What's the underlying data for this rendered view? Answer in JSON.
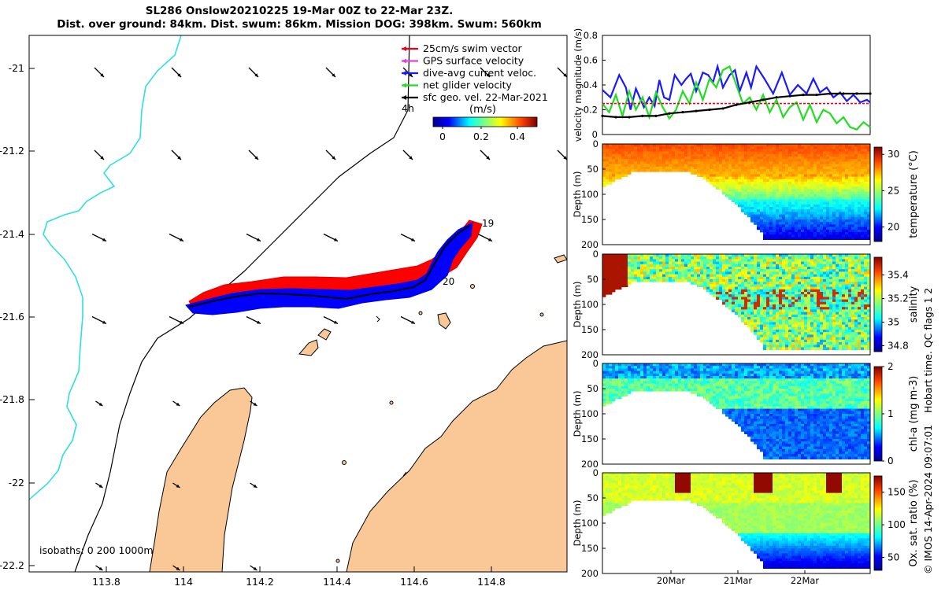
{
  "header": {
    "title_line1": "SL286 Onslow20210225 19-Mar 00Z to 22-Mar 23Z.",
    "title_line2": "Dist. over ground: 84km. Dist. swum: 86km. Mission DOG: 398km. Swum: 560km"
  },
  "map": {
    "x_ticks": [
      "113.8",
      "114",
      "114.2",
      "114.4",
      "114.6",
      "114.8"
    ],
    "y_ticks": [
      "-21",
      "-21.2",
      "-21.4",
      "-21.6",
      "-21.8",
      "-22",
      "-22.2"
    ],
    "isobath_label": "isobaths: 0   200  1000m",
    "track_day_labels": [
      "19",
      "20"
    ],
    "scale_label": "4h",
    "legend": [
      {
        "label": "25cm/s swim vector",
        "color": "#e8001c"
      },
      {
        "label": "GPS surface velocity",
        "color": "#e040e0"
      },
      {
        "label": "dive-avg current veloc.",
        "color": "#1a1aff"
      },
      {
        "label": "net glider velocity",
        "color": "#22dd22"
      },
      {
        "label": "sfc geo. vel. 22-Mar-2021",
        "color": "#000000"
      }
    ],
    "colorbar": {
      "title": "(m/s)",
      "ticks": [
        "0",
        "0.2",
        "0.4"
      ]
    }
  },
  "chart_data": [
    {
      "type": "line",
      "title": "",
      "ylabel": "velocity magnitude (m/s)",
      "ylim": [
        0,
        0.8
      ],
      "y_ticks": [
        "0",
        "0.2",
        "0.4",
        "0.6",
        "0.8"
      ],
      "x_range_days": [
        0,
        4
      ],
      "series": [
        {
          "name": "dive-avg current veloc.",
          "color": "#1a1aff",
          "x": [
            0,
            0.12,
            0.25,
            0.35,
            0.42,
            0.5,
            0.62,
            0.7,
            0.78,
            0.85,
            0.92,
            1.0,
            1.08,
            1.18,
            1.25,
            1.32,
            1.4,
            1.5,
            1.58,
            1.65,
            1.72,
            1.8,
            1.9,
            1.98,
            2.05,
            2.15,
            2.22,
            2.3,
            2.42,
            2.55,
            2.68,
            2.8,
            2.92,
            3.05,
            3.15,
            3.25,
            3.35,
            3.45,
            3.55,
            3.65,
            3.75,
            3.85,
            3.95,
            4.0
          ],
          "y": [
            0.36,
            0.3,
            0.48,
            0.38,
            0.2,
            0.37,
            0.22,
            0.3,
            0.23,
            0.44,
            0.3,
            0.28,
            0.48,
            0.4,
            0.45,
            0.49,
            0.35,
            0.5,
            0.48,
            0.42,
            0.55,
            0.38,
            0.48,
            0.52,
            0.35,
            0.5,
            0.38,
            0.55,
            0.45,
            0.33,
            0.5,
            0.32,
            0.4,
            0.33,
            0.45,
            0.34,
            0.38,
            0.3,
            0.34,
            0.27,
            0.32,
            0.26,
            0.28,
            0.26
          ]
        },
        {
          "name": "net glider velocity",
          "color": "#22dd22",
          "x": [
            0,
            0.1,
            0.2,
            0.3,
            0.4,
            0.5,
            0.6,
            0.7,
            0.8,
            0.9,
            1.0,
            1.1,
            1.2,
            1.3,
            1.4,
            1.5,
            1.6,
            1.7,
            1.8,
            1.9,
            2.0,
            2.1,
            2.2,
            2.3,
            2.4,
            2.5,
            2.6,
            2.7,
            2.8,
            2.9,
            3.0,
            3.1,
            3.2,
            3.3,
            3.4,
            3.5,
            3.6,
            3.7,
            3.8,
            3.9,
            4.0
          ],
          "y": [
            0.25,
            0.18,
            0.32,
            0.15,
            0.35,
            0.2,
            0.3,
            0.14,
            0.34,
            0.22,
            0.13,
            0.2,
            0.35,
            0.25,
            0.42,
            0.28,
            0.45,
            0.38,
            0.52,
            0.55,
            0.4,
            0.25,
            0.3,
            0.2,
            0.32,
            0.18,
            0.28,
            0.14,
            0.22,
            0.26,
            0.12,
            0.24,
            0.1,
            0.2,
            0.17,
            0.09,
            0.14,
            0.06,
            0.04,
            0.1,
            0.06
          ]
        },
        {
          "name": "25cm/s swim vector",
          "color": "#e8001c",
          "x": [
            0,
            4
          ],
          "y": [
            0.25,
            0.25
          ]
        },
        {
          "name": "sfc geo. vel.",
          "color": "#000000",
          "x": [
            0,
            0.2,
            0.4,
            0.6,
            0.8,
            1.0,
            1.2,
            1.4,
            1.6,
            1.8,
            2.0,
            2.2,
            2.4,
            2.6,
            2.8,
            3.0,
            3.2,
            3.4,
            3.6,
            3.8,
            4.0
          ],
          "y": [
            0.15,
            0.14,
            0.14,
            0.15,
            0.15,
            0.17,
            0.18,
            0.19,
            0.2,
            0.21,
            0.24,
            0.26,
            0.28,
            0.3,
            0.31,
            0.32,
            0.32,
            0.33,
            0.33,
            0.33,
            0.33
          ]
        }
      ]
    },
    {
      "type": "heatmap",
      "ylabel": "Depth (m)",
      "ylim": [
        0,
        200
      ],
      "y_ticks": [
        "0",
        "50",
        "100",
        "150",
        "200"
      ],
      "colorbar_label": "temperature (°C)",
      "colorbar_ticks": [
        "30",
        "25",
        "20"
      ],
      "crange": [
        18,
        31
      ]
    },
    {
      "type": "heatmap",
      "ylabel": "Depth (m)",
      "ylim": [
        0,
        200
      ],
      "y_ticks": [
        "0",
        "50",
        "100",
        "150",
        "200"
      ],
      "colorbar_label": "salinity",
      "colorbar_ticks": [
        "35.4",
        "35.2",
        "35",
        "34.8"
      ],
      "crange": [
        34.75,
        35.55
      ]
    },
    {
      "type": "heatmap",
      "ylabel": "Depth (m)",
      "ylim": [
        0,
        200
      ],
      "y_ticks": [
        "0",
        "50",
        "100",
        "150",
        "200"
      ],
      "colorbar_label": "chl-a (mg m-3)",
      "colorbar_ticks": [
        "2",
        "1",
        "0"
      ],
      "crange": [
        0,
        2
      ]
    },
    {
      "type": "heatmap",
      "ylabel": "Depth (m)",
      "ylim": [
        0,
        200
      ],
      "y_ticks": [
        "0",
        "50",
        "100",
        "150",
        "200"
      ],
      "colorbar_label": "Ox. sat. ratio (%)",
      "colorbar_ticks": [
        "150",
        "100",
        "50"
      ],
      "crange": [
        30,
        175
      ]
    }
  ],
  "time_axis": {
    "ticks": [
      "20Mar",
      "21Mar",
      "22Mar"
    ]
  },
  "credit": {
    "flags_text": "Hobart time. QC flags 1  2",
    "imos_text": "© IMOS 14-Apr-2024 09:07:01"
  }
}
